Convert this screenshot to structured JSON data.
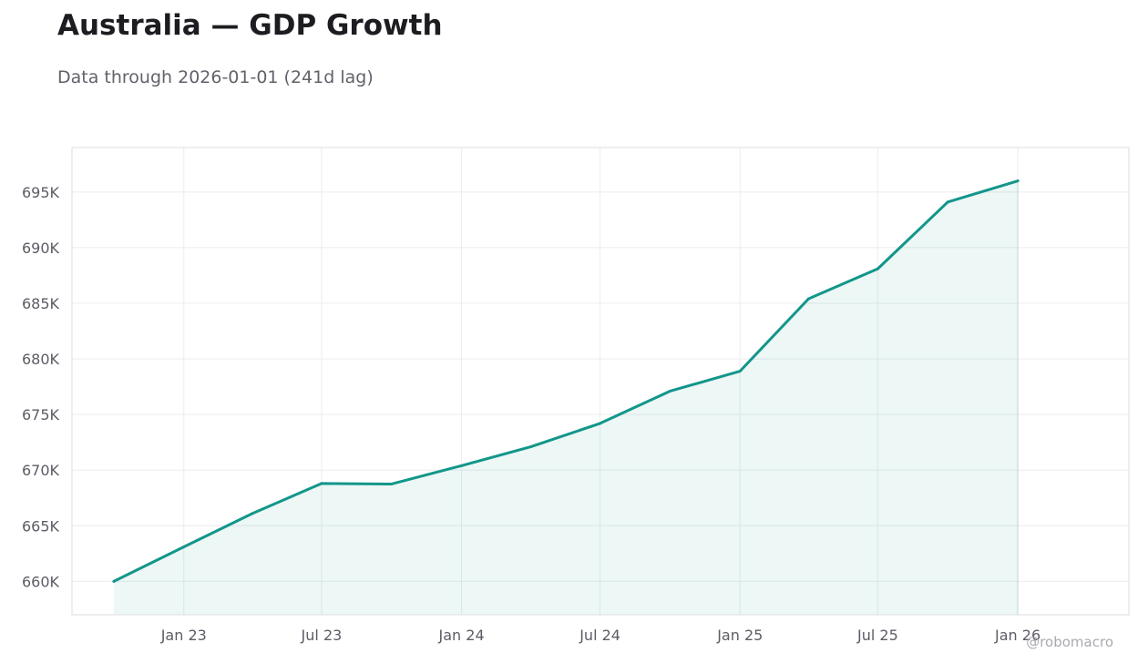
{
  "header": {
    "title": "Australia — GDP Growth",
    "subtitle": "Data through 2026-01-01 (241d lag)"
  },
  "watermark": "@robomacro",
  "colors": {
    "line": "#12968a",
    "fill": "#12968a",
    "grid": "#ececef",
    "frame": "#dcdce0",
    "text": "#5c5c66"
  },
  "chart_data": {
    "type": "area",
    "title": "Australia — GDP Growth",
    "subtitle": "Data through 2026-01-01 (241d lag)",
    "xlabel": "",
    "ylabel": "",
    "x_tick_labels": [
      "Jan 23",
      "Jul 23",
      "Jan 24",
      "Jul 24",
      "Jan 25",
      "Jul 25",
      "Jan 26"
    ],
    "x_tick_dates": [
      "2023-01-01",
      "2023-07-01",
      "2024-01-01",
      "2024-07-01",
      "2025-01-01",
      "2025-07-01",
      "2026-01-01"
    ],
    "y_tick_labels": [
      "660K",
      "665K",
      "670K",
      "675K",
      "680K",
      "685K",
      "690K",
      "695K"
    ],
    "y_tick_values": [
      660000,
      665000,
      670000,
      675000,
      680000,
      685000,
      690000,
      695000
    ],
    "xlim": [
      "2022-08-07",
      "2026-05-27"
    ],
    "ylim": [
      657000,
      699000
    ],
    "grid": true,
    "legend": "none",
    "x": [
      "2022-10-01",
      "2023-01-01",
      "2023-04-01",
      "2023-07-01",
      "2023-10-01",
      "2024-01-01",
      "2024-04-01",
      "2024-07-01",
      "2024-10-01",
      "2025-01-01",
      "2025-04-01",
      "2025-07-01",
      "2025-10-01",
      "2026-01-01"
    ],
    "values": [
      660000,
      663100,
      666100,
      668800,
      668750,
      670400,
      672100,
      674200,
      677100,
      678900,
      685400,
      688100,
      694100,
      696000
    ]
  }
}
